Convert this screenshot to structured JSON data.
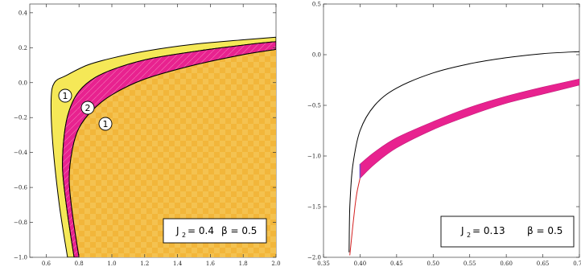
{
  "chart_data": [
    {
      "type": "area",
      "xlim": [
        0.5,
        2.0
      ],
      "ylim": [
        -1.0,
        0.45
      ],
      "x_ticks": [
        "0.6",
        "0.8",
        "1.0",
        "1.2",
        "1.4",
        "1.6",
        "1.8",
        "2.0"
      ],
      "y_ticks": [
        "0.4",
        "0.2",
        "0.0",
        "−0.2",
        "−0.4",
        "−0.6",
        "−0.8",
        "−1.0"
      ],
      "grid": false,
      "colors": {
        "region_1": "#f5e857",
        "region_2": "#e8228f",
        "region_interior": "#f2b63a",
        "outline": "#000000"
      },
      "series": [
        {
          "x": [
            0.73,
            0.68,
            0.64,
            0.63,
            0.65,
            0.72,
            0.85,
            1.0,
            1.2,
            1.5,
            1.8,
            2.0
          ],
          "y": [
            -1.0,
            -0.7,
            -0.35,
            -0.1,
            0.0,
            0.04,
            0.1,
            0.14,
            0.18,
            0.22,
            0.245,
            0.26
          ]
        },
        {
          "x": [
            0.77,
            0.73,
            0.7,
            0.71,
            0.74,
            0.8,
            0.9,
            1.05,
            1.25,
            1.55,
            1.8,
            2.0
          ],
          "y": [
            -1.0,
            -0.75,
            -0.5,
            -0.3,
            -0.16,
            -0.05,
            0.03,
            0.09,
            0.14,
            0.185,
            0.215,
            0.235
          ]
        },
        {
          "x": [
            0.8,
            0.76,
            0.74,
            0.76,
            0.8,
            0.88,
            1.0,
            1.2,
            1.5,
            1.8,
            2.0
          ],
          "y": [
            -1.0,
            -0.75,
            -0.55,
            -0.38,
            -0.26,
            -0.16,
            -0.07,
            0.02,
            0.1,
            0.16,
            0.19
          ]
        }
      ],
      "region_labels": [
        "1",
        "2",
        "1"
      ],
      "annotation": {
        "j_label": "J",
        "j_sub": "2",
        "j_value": "= 0.4",
        "beta": "β = 0.5"
      }
    },
    {
      "type": "line",
      "xlim": [
        0.35,
        0.7
      ],
      "ylim": [
        -2.0,
        0.5
      ],
      "x_ticks": [
        "0.35",
        "0.40",
        "0.45",
        "0.50",
        "0.55",
        "0.60",
        "0.65",
        "0.70"
      ],
      "y_ticks": [
        "0.5",
        "0.0",
        "−0.5",
        "−1.0",
        "−1.5",
        "−2.0"
      ],
      "grid": false,
      "colors": {
        "outer": "#000000",
        "band": "#e8228f",
        "red": "#d42020",
        "purple": "#7a4bc0"
      },
      "series": [
        {
          "x": [
            0.385,
            0.386,
            0.39,
            0.4,
            0.42,
            0.45,
            0.5,
            0.55,
            0.6,
            0.65,
            0.7
          ],
          "y": [
            -1.95,
            -1.5,
            -1.1,
            -0.75,
            -0.5,
            -0.33,
            -0.18,
            -0.09,
            -0.03,
            0.01,
            0.03
          ]
        },
        {
          "x": [
            0.386,
            0.39,
            0.393,
            0.396,
            0.4
          ],
          "y": [
            -1.98,
            -1.7,
            -1.5,
            -1.35,
            -1.22
          ]
        },
        {
          "x": [
            0.4,
            0.42,
            0.45,
            0.5,
            0.55,
            0.6,
            0.65,
            0.7
          ],
          "y": [
            -1.22,
            -1.08,
            -0.92,
            -0.74,
            -0.6,
            -0.48,
            -0.39,
            -0.3
          ]
        },
        {
          "x": [
            0.4,
            0.42,
            0.45,
            0.5,
            0.55,
            0.6,
            0.65,
            0.7
          ],
          "y": [
            -1.08,
            -0.96,
            -0.82,
            -0.66,
            -0.52,
            -0.41,
            -0.32,
            -0.24
          ]
        }
      ],
      "annotation": {
        "j_label": "J",
        "j_sub": "2",
        "j_value": "= 0.13",
        "beta": "β = 0.5"
      }
    }
  ]
}
